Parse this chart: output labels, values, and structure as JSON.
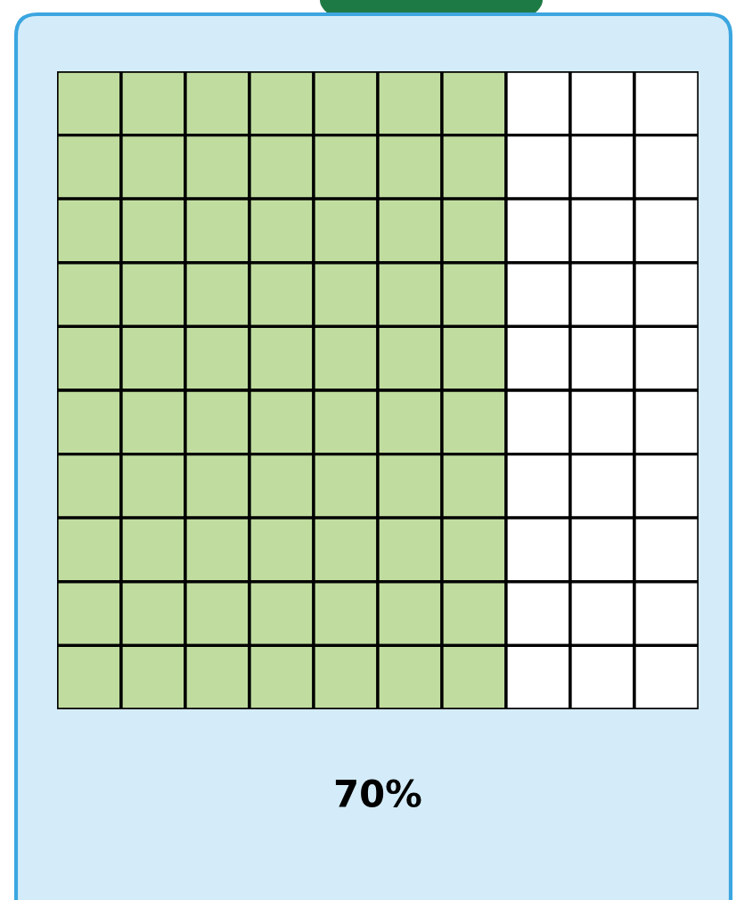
{
  "chart_data": {
    "type": "other",
    "values": [
      70
    ],
    "value_labels": [
      "70%"
    ],
    "color": "#c0dd9f"
  }
}
